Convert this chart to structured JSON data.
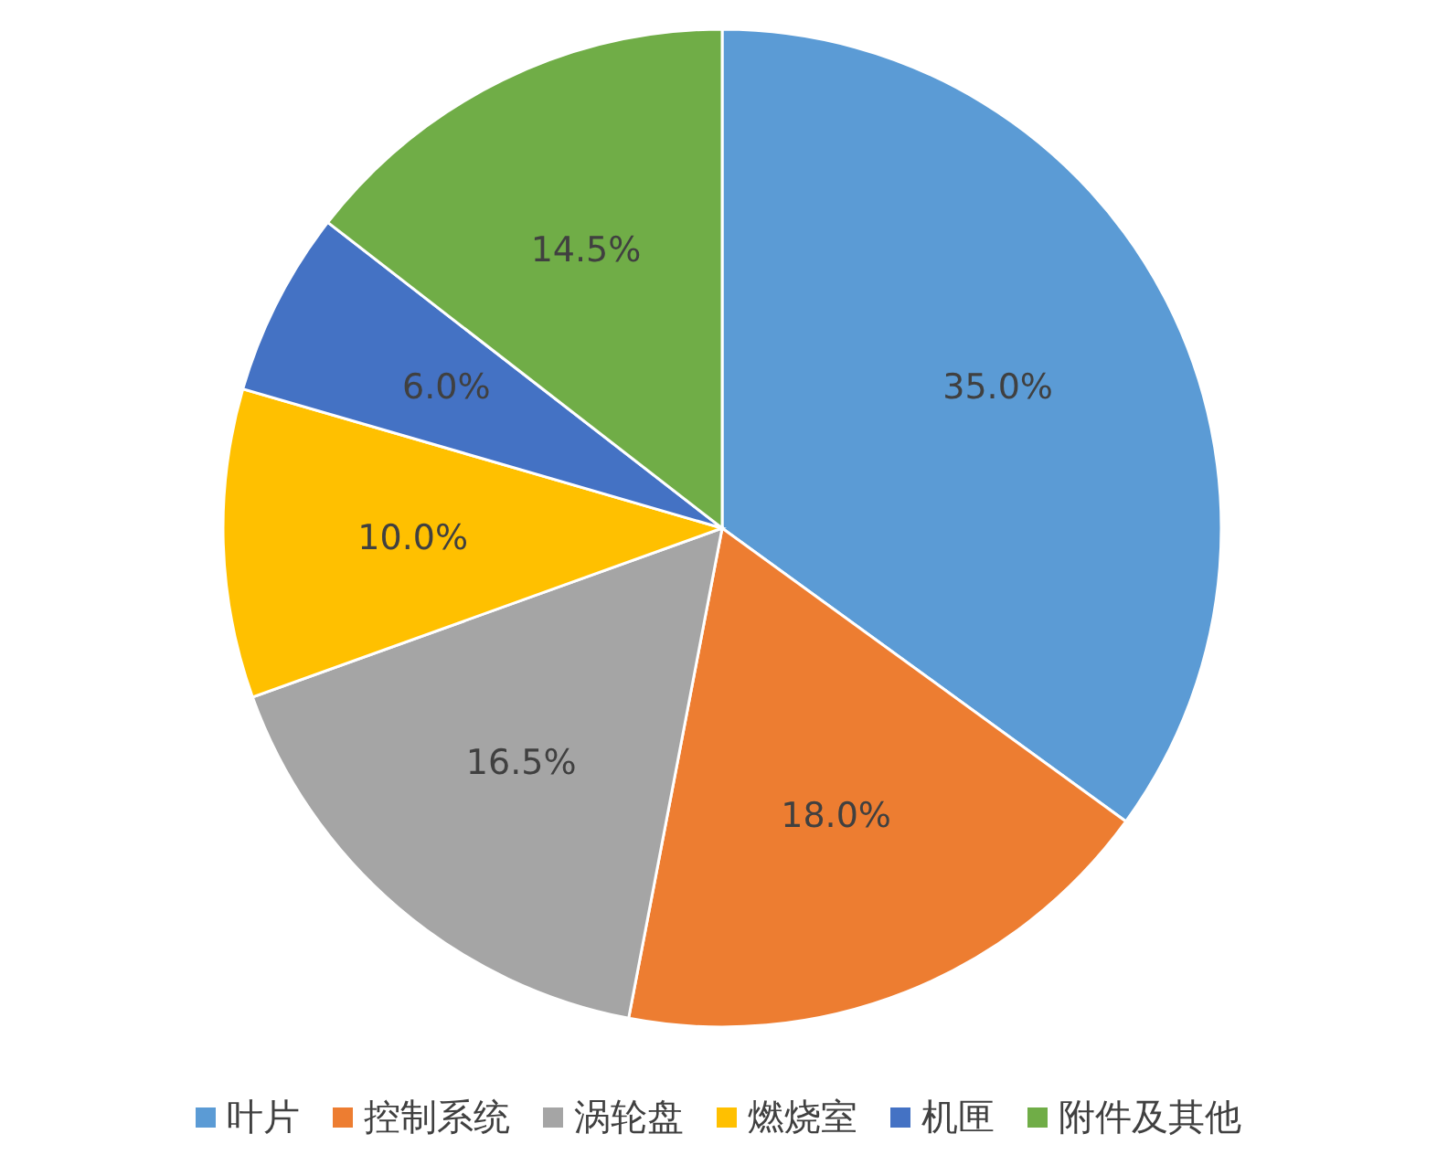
{
  "chart_data": {
    "type": "pie",
    "categories": [
      "叶片",
      "控制系统",
      "涡轮盘",
      "燃烧室",
      "机匣",
      "附件及其他"
    ],
    "values": [
      35,
      18,
      16.5,
      10,
      6,
      14.5
    ],
    "colors": [
      "#5b9bd5",
      "#ed7d31",
      "#a5a5a5",
      "#ffc000",
      "#4472c4",
      "#70ad47"
    ],
    "value_labels": [
      "35.0%",
      "18.0%",
      "16.5%",
      "10.0%",
      "6.0%",
      "14.5%"
    ],
    "legend": "bottom"
  }
}
